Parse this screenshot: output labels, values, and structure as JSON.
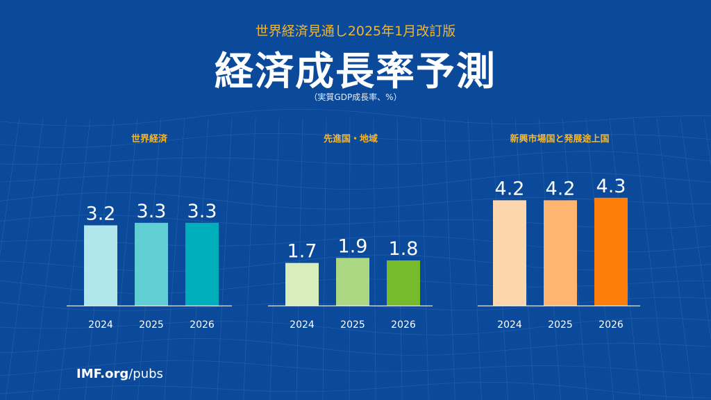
{
  "header": {
    "subtitle": "世界経済見通し2025年1月改訂版",
    "title": "経済成長率予測",
    "unit": "（実質GDP成長率、%）"
  },
  "footer": {
    "brand": "IMF.org",
    "path": "/pubs"
  },
  "chart_data": [
    {
      "type": "bar",
      "title": "世界経済",
      "categories": [
        "2024",
        "2025",
        "2026"
      ],
      "values": [
        3.2,
        3.3,
        3.3
      ],
      "colors": [
        "#b1e6ec",
        "#5fcfd3",
        "#00afbc"
      ],
      "ylim": [
        0,
        5
      ]
    },
    {
      "type": "bar",
      "title": "先進国・地域",
      "categories": [
        "2024",
        "2025",
        "2026"
      ],
      "values": [
        1.7,
        1.9,
        1.8
      ],
      "colors": [
        "#d7eebc",
        "#acd883",
        "#75bb2b"
      ],
      "ylim": [
        0,
        5
      ]
    },
    {
      "type": "bar",
      "title": "新興市場国と発展途上国",
      "categories": [
        "2024",
        "2025",
        "2026"
      ],
      "values": [
        4.2,
        4.2,
        4.3
      ],
      "colors": [
        "#fcd6ad",
        "#fdb56f",
        "#fd7e0a"
      ],
      "ylim": [
        0,
        5
      ]
    }
  ]
}
